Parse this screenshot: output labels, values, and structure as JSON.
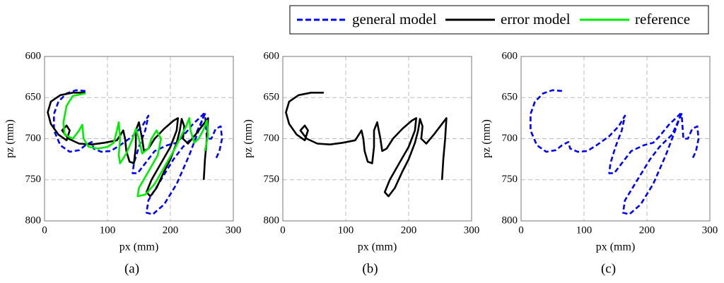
{
  "chart_data": [
    {
      "type": "line",
      "caption": "(a)",
      "x_label": "px (mm)",
      "y_label": "pz (mm)",
      "xlim": [
        0,
        300
      ],
      "xticks": [
        0,
        100,
        200,
        300
      ],
      "ylim": [
        800,
        600
      ],
      "yticks": [
        600,
        650,
        700,
        750,
        800
      ],
      "grid": true,
      "legend": "top-right",
      "series": [
        {
          "name": "general model",
          "color": "#0000ff",
          "dashed": true,
          "x": [
            65,
            50,
            35,
            22,
            15,
            15,
            25,
            40,
            55,
            65,
            75,
            78,
            90,
            105,
            120,
            140,
            155,
            165,
            160,
            150,
            142,
            140,
            148,
            160,
            175,
            195,
            210,
            220,
            235,
            250,
            255,
            245,
            230,
            210,
            190,
            172,
            162,
            165,
            185,
            205,
            220,
            240,
            255,
            258,
            265,
            272,
            280,
            282,
            278,
            272
          ],
          "values": [
            642,
            641,
            645,
            655,
            670,
            690,
            708,
            716,
            714,
            708,
            704,
            712,
            716,
            715,
            708,
            697,
            685,
            672,
            690,
            710,
            730,
            742,
            742,
            730,
            715,
            708,
            705,
            697,
            683,
            672,
            668,
            690,
            720,
            755,
            780,
            792,
            790,
            775,
            750,
            725,
            710,
            695,
            670,
            700,
            700,
            688,
            685,
            700,
            715,
            725
          ]
        },
        {
          "name": "error model",
          "color": "#000000",
          "dashed": false,
          "x": [
            65,
            45,
            25,
            10,
            5,
            10,
            22,
            35,
            40,
            35,
            28,
            38,
            55,
            75,
            95,
            115,
            125,
            128,
            130,
            135,
            142,
            145,
            145,
            150,
            155,
            158,
            165,
            175,
            190,
            205,
            212,
            210,
            200,
            185,
            170,
            162,
            168,
            178,
            190,
            200,
            210,
            215,
            218,
            222,
            220,
            228,
            240,
            255,
            260,
            258,
            255,
            253
          ],
          "values": [
            644,
            644,
            647,
            655,
            668,
            682,
            695,
            702,
            690,
            684,
            690,
            700,
            706,
            707,
            705,
            702,
            690,
            700,
            715,
            728,
            730,
            710,
            690,
            680,
            700,
            715,
            712,
            700,
            688,
            678,
            675,
            690,
            710,
            730,
            750,
            765,
            770,
            760,
            740,
            725,
            705,
            690,
            676,
            685,
            700,
            706,
            695,
            680,
            675,
            700,
            725,
            750
          ]
        },
        {
          "name": "reference",
          "color": "#00ee00",
          "dashed": false,
          "x": [
            65,
            45,
            35,
            30,
            32,
            45,
            55,
            60,
            62,
            70,
            85,
            100,
            110,
            115,
            118,
            120,
            118,
            120,
            130,
            140,
            145,
            150,
            155,
            165,
            170,
            178,
            185,
            180,
            165,
            150,
            148,
            160,
            175,
            190,
            205,
            215,
            225,
            230,
            232,
            238,
            245,
            252,
            258,
            260,
            255
          ],
          "values": [
            645,
            648,
            660,
            680,
            695,
            700,
            690,
            683,
            700,
            710,
            712,
            710,
            705,
            690,
            680,
            700,
            720,
            730,
            718,
            700,
            688,
            700,
            718,
            712,
            700,
            690,
            700,
            720,
            740,
            760,
            770,
            768,
            755,
            735,
            715,
            700,
            685,
            675,
            690,
            705,
            700,
            690,
            678,
            695,
            715
          ]
        }
      ]
    },
    {
      "type": "line",
      "caption": "(b)",
      "x_label": "px (mm)",
      "y_label": "pz (mm)",
      "xlim": [
        0,
        300
      ],
      "xticks": [
        0,
        100,
        200,
        300
      ],
      "ylim": [
        800,
        600
      ],
      "yticks": [
        600,
        650,
        700,
        750,
        800
      ],
      "grid": true,
      "series": [
        {
          "color": "#000000",
          "dashed": false,
          "x": [
            65,
            45,
            25,
            10,
            5,
            10,
            22,
            35,
            40,
            35,
            28,
            38,
            55,
            75,
            95,
            115,
            125,
            128,
            130,
            135,
            142,
            145,
            145,
            150,
            155,
            158,
            165,
            175,
            190,
            205,
            212,
            210,
            200,
            185,
            170,
            162,
            168,
            178,
            190,
            200,
            210,
            215,
            218,
            222,
            220,
            228,
            240,
            255,
            260,
            258,
            255,
            253
          ],
          "values": [
            644,
            644,
            647,
            655,
            668,
            682,
            695,
            702,
            690,
            684,
            690,
            700,
            706,
            707,
            705,
            702,
            690,
            700,
            715,
            728,
            730,
            710,
            690,
            680,
            700,
            715,
            712,
            700,
            688,
            678,
            675,
            690,
            710,
            730,
            750,
            765,
            770,
            760,
            740,
            725,
            705,
            690,
            676,
            685,
            700,
            706,
            695,
            680,
            675,
            700,
            725,
            750
          ]
        }
      ]
    },
    {
      "type": "line",
      "caption": "(c)",
      "x_label": "px (mm)",
      "y_label": "pz (mm)",
      "xlim": [
        0,
        300
      ],
      "xticks": [
        0,
        100,
        200,
        300
      ],
      "ylim": [
        800,
        600
      ],
      "yticks": [
        600,
        650,
        700,
        750,
        800
      ],
      "grid": true,
      "series": [
        {
          "color": "#0000ff",
          "dashed": true,
          "x": [
            65,
            50,
            35,
            22,
            15,
            15,
            25,
            40,
            55,
            65,
            75,
            78,
            90,
            105,
            120,
            140,
            155,
            165,
            160,
            150,
            142,
            140,
            148,
            160,
            175,
            195,
            210,
            220,
            235,
            250,
            255,
            245,
            230,
            210,
            190,
            172,
            162,
            165,
            185,
            205,
            220,
            240,
            255,
            258,
            265,
            272,
            280,
            282,
            278,
            272
          ],
          "values": [
            642,
            641,
            645,
            655,
            670,
            690,
            708,
            716,
            714,
            708,
            704,
            712,
            716,
            715,
            708,
            697,
            685,
            672,
            690,
            710,
            730,
            742,
            742,
            730,
            715,
            708,
            705,
            697,
            683,
            672,
            668,
            690,
            720,
            755,
            780,
            792,
            790,
            775,
            750,
            725,
            710,
            695,
            670,
            700,
            700,
            688,
            685,
            700,
            715,
            725
          ]
        }
      ]
    }
  ]
}
